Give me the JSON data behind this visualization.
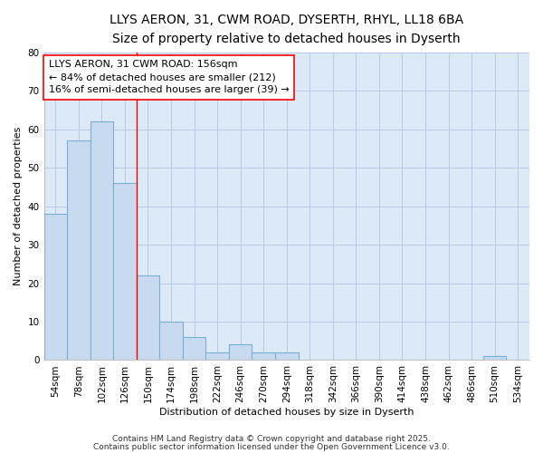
{
  "title_line1": "LLYS AERON, 31, CWM ROAD, DYSERTH, RHYL, LL18 6BA",
  "title_line2": "Size of property relative to detached houses in Dyserth",
  "xlabel": "Distribution of detached houses by size in Dyserth",
  "ylabel": "Number of detached properties",
  "categories": [
    "54sqm",
    "78sqm",
    "102sqm",
    "126sqm",
    "150sqm",
    "174sqm",
    "198sqm",
    "222sqm",
    "246sqm",
    "270sqm",
    "294sqm",
    "318sqm",
    "342sqm",
    "366sqm",
    "390sqm",
    "414sqm",
    "438sqm",
    "462sqm",
    "486sqm",
    "510sqm",
    "534sqm"
  ],
  "values": [
    38,
    57,
    62,
    46,
    22,
    10,
    6,
    2,
    4,
    2,
    2,
    0,
    0,
    0,
    0,
    0,
    0,
    0,
    0,
    1,
    0
  ],
  "bar_color": "#c8daef",
  "bar_edge_color": "#7bafd4",
  "bar_width": 1.0,
  "red_line_x": 4.0,
  "annotation_line1": "LLYS AERON, 31 CWM ROAD: 156sqm",
  "annotation_line2": "← 84% of detached houses are smaller (212)",
  "annotation_line3": "16% of semi-detached houses are larger (39) →",
  "ylim": [
    0,
    80
  ],
  "yticks": [
    0,
    10,
    20,
    30,
    40,
    50,
    60,
    70,
    80
  ],
  "plot_bg_color": "#dce9f7",
  "fig_bg_color": "#ffffff",
  "grid_color": "#b8c8e8",
  "footer_line1": "Contains HM Land Registry data © Crown copyright and database right 2025.",
  "footer_line2": "Contains public sector information licensed under the Open Government Licence v3.0.",
  "title_fontsize": 10,
  "subtitle_fontsize": 9,
  "axis_label_fontsize": 8,
  "tick_fontsize": 7.5,
  "annotation_fontsize": 8
}
